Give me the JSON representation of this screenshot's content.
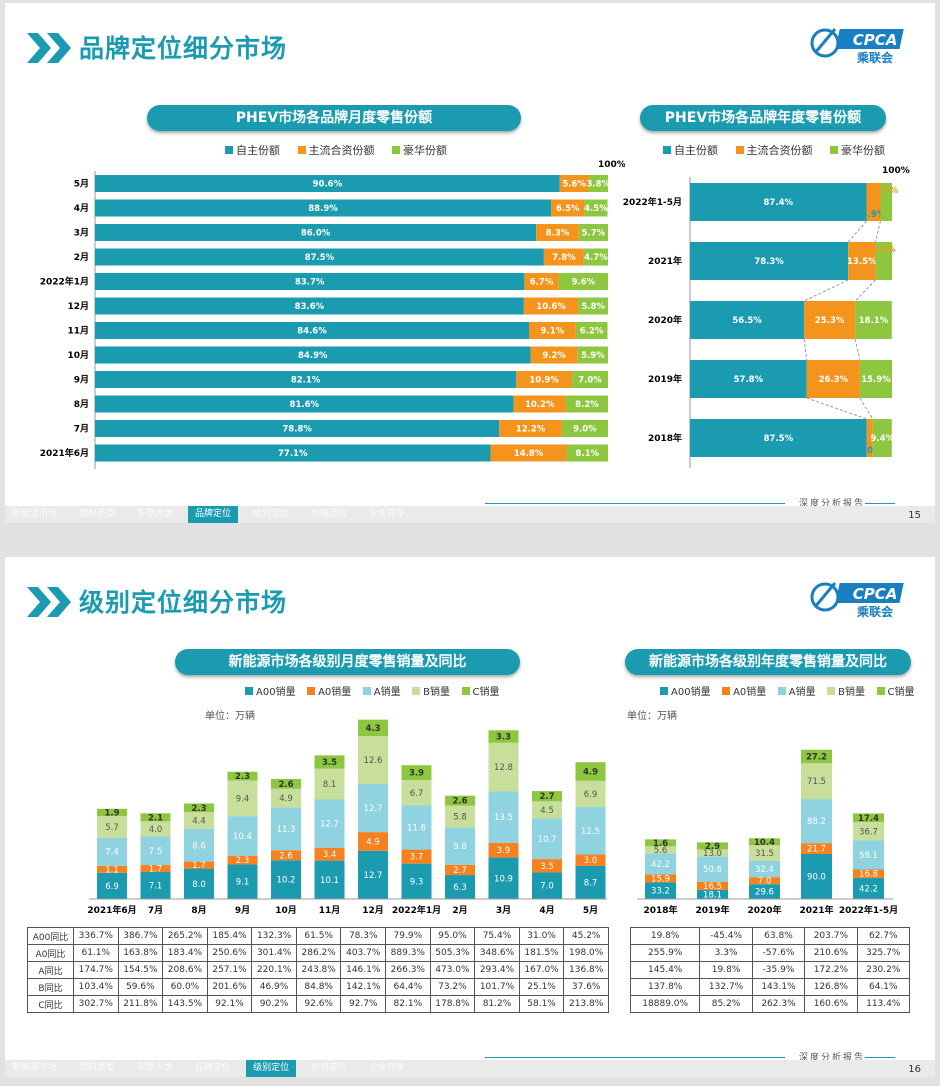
{
  "colors": {
    "teal": "#1a9bb0",
    "orange": "#f5941d",
    "green": "#8dc63f",
    "lightgreen": "#c7df9b",
    "lightblue": "#8fd3e0"
  },
  "slide1": {
    "title": "品牌定位细分市场",
    "logo_text": "CPCA",
    "logo_sub": "乘联会",
    "left_pill": "PHEV市场各品牌月度零售份额",
    "right_pill": "PHEV市场各品牌年度零售份额",
    "legend": [
      "自主份额",
      "主流合资份额",
      "豪华份额"
    ],
    "pct100": "100%",
    "page": "15",
    "deep": "深度分析报告",
    "tabs": [
      "新能源市场",
      "燃料类型",
      "车型大类",
      "品牌定位",
      "级别定位",
      "价格定位",
      "企业竞争"
    ],
    "active_tab": 3
  },
  "chart_data": [
    {
      "type": "bar",
      "orientation": "horizontal",
      "stacked": true,
      "title": "PHEV市场各品牌月度零售份额",
      "categories": [
        "5月",
        "4月",
        "3月",
        "2月",
        "2022年1月",
        "12月",
        "11月",
        "10月",
        "9月",
        "8月",
        "7月",
        "2021年6月"
      ],
      "series": [
        {
          "name": "自主份额",
          "values": [
            90.6,
            88.9,
            86.0,
            87.5,
            83.7,
            83.6,
            84.6,
            84.9,
            82.1,
            81.6,
            78.8,
            77.1
          ],
          "labels": [
            "90.6%",
            "88.9%",
            "86.0%",
            "87.5%",
            "83.7%",
            "83.6%",
            "84.6%",
            "84.9%",
            "82.1%",
            "81.6%",
            "78.8%",
            "77.1%"
          ]
        },
        {
          "name": "主流合资份额",
          "values": [
            5.6,
            6.5,
            8.3,
            7.8,
            6.7,
            10.6,
            9.1,
            9.2,
            10.9,
            10.2,
            12.2,
            14.8
          ],
          "labels": [
            "5.6%",
            "6.5%",
            "8.3%",
            "7.8%",
            "6.7%",
            "10.6%",
            "9.1%",
            "9.2%",
            "10.9%",
            "10.2%",
            "12.2%",
            "14.8%"
          ]
        },
        {
          "name": "豪华份额",
          "values": [
            3.8,
            4.5,
            5.7,
            4.7,
            9.6,
            5.8,
            6.2,
            5.9,
            7.0,
            8.2,
            9.0,
            8.1
          ],
          "labels": [
            "3.8%",
            "4.5%",
            "5.7%",
            "4.7%",
            "9.6%",
            "5.8%",
            "6.2%",
            "5.9%",
            "7.0%",
            "8.2%",
            "9.0%",
            "8.1%"
          ]
        }
      ]
    },
    {
      "type": "bar",
      "orientation": "horizontal",
      "stacked": true,
      "title": "PHEV市场各品牌年度零售份额",
      "categories": [
        "2022年1-5月",
        "2021年",
        "2020年",
        "2019年",
        "2018年"
      ],
      "series": [
        {
          "name": "自主份额",
          "values": [
            87.4,
            78.3,
            56.5,
            57.8,
            87.5
          ],
          "labels": [
            "87.4%",
            "78.3%",
            "56.5%",
            "57.8%",
            "87.5%"
          ]
        },
        {
          "name": "主流合资份额",
          "values": [
            6.9,
            13.5,
            25.3,
            26.3,
            3.0
          ],
          "labels": [
            "6.9%",
            "13.5%",
            "25.3%",
            "26.3%",
            "3.0%"
          ]
        },
        {
          "name": "豪华份额",
          "values": [
            5.7,
            8.2,
            18.1,
            15.9,
            9.4
          ],
          "labels": [
            "5.7%",
            "8.2%",
            "18.1%",
            "15.9%",
            "9.4%"
          ]
        }
      ]
    },
    {
      "type": "bar",
      "stacked": true,
      "title": "新能源市场各级别月度零售销量及同比",
      "unit": "单位：万辆",
      "categories": [
        "2021年6月",
        "7月",
        "8月",
        "9月",
        "10月",
        "11月",
        "12月",
        "2022年1月",
        "2月",
        "3月",
        "4月",
        "5月"
      ],
      "series": [
        {
          "name": "A00销量",
          "values": [
            6.9,
            7.1,
            8.0,
            9.1,
            10.2,
            10.1,
            12.7,
            9.3,
            6.3,
            10.9,
            7.0,
            8.7
          ]
        },
        {
          "name": "A0销量",
          "values": [
            1.1,
            1.7,
            1.7,
            2.3,
            2.6,
            3.4,
            4.9,
            3.7,
            2.7,
            3.9,
            3.5,
            3.0
          ]
        },
        {
          "name": "A销量",
          "values": [
            7.4,
            7.5,
            8.6,
            10.4,
            11.3,
            12.7,
            12.7,
            11.6,
            9.8,
            13.5,
            10.7,
            12.5
          ]
        },
        {
          "name": "B销量",
          "values": [
            5.7,
            4.0,
            4.4,
            9.4,
            4.9,
            8.1,
            12.6,
            6.7,
            5.8,
            12.8,
            4.5,
            6.9
          ]
        },
        {
          "name": "C销量",
          "values": [
            1.9,
            2.1,
            2.3,
            2.3,
            2.6,
            3.5,
            4.3,
            3.9,
            2.6,
            3.3,
            2.7,
            4.9
          ]
        }
      ]
    },
    {
      "type": "bar",
      "stacked": true,
      "title": "新能源市场各级别年度零售销量及同比",
      "unit": "单位：万辆",
      "categories": [
        "2018年",
        "2019年",
        "2020年",
        "2021年",
        "2022年1-5月"
      ],
      "series": [
        {
          "name": "A00销量",
          "values": [
            33.2,
            18.1,
            29.6,
            90.0,
            42.2
          ]
        },
        {
          "name": "A0销量",
          "values": [
            15.9,
            16.5,
            7.0,
            21.7,
            16.8
          ]
        },
        {
          "name": "A销量",
          "values": [
            42.2,
            50.6,
            32.4,
            88.2,
            58.1
          ]
        },
        {
          "name": "B销量",
          "values": [
            5.6,
            13.0,
            31.5,
            71.5,
            36.7
          ]
        },
        {
          "name": "C销量",
          "values": [
            1.6,
            2.9,
            10.4,
            27.2,
            17.4
          ]
        }
      ]
    }
  ],
  "slide2": {
    "title": "级别定位细分市场",
    "logo_text": "CPCA",
    "logo_sub": "乘联会",
    "left_pill": "新能源市场各级别月度零售销量及同比",
    "right_pill": "新能源市场各级别年度零售销量及同比",
    "legend": [
      "A00销量",
      "A0销量",
      "A销量",
      "B销量",
      "C销量"
    ],
    "unit": "单位：万辆",
    "page": "16",
    "deep": "深度分析报告",
    "tabs": [
      "新能源市场",
      "燃料类型",
      "车型大类",
      "品牌定位",
      "级别定位",
      "价格定位",
      "企业竞争"
    ],
    "active_tab": 4,
    "month_table": {
      "rows": [
        {
          "label": "A00同比",
          "values": [
            "336.7%",
            "386.7%",
            "265.2%",
            "185.4%",
            "132.3%",
            "61.5%",
            "78.3%",
            "79.9%",
            "95.0%",
            "75.4%",
            "31.0%",
            "45.2%"
          ]
        },
        {
          "label": "A0同比",
          "values": [
            "61.1%",
            "163.8%",
            "183.4%",
            "250.6%",
            "301.4%",
            "286.2%",
            "403.7%",
            "889.3%",
            "505.3%",
            "348.6%",
            "181.5%",
            "198.0%"
          ]
        },
        {
          "label": "A同比",
          "values": [
            "174.7%",
            "154.5%",
            "208.6%",
            "257.1%",
            "220.1%",
            "243.8%",
            "146.1%",
            "266.3%",
            "473.0%",
            "293.4%",
            "167.0%",
            "136.8%"
          ]
        },
        {
          "label": "B同比",
          "values": [
            "103.4%",
            "59.6%",
            "60.0%",
            "201.6%",
            "46.9%",
            "84.8%",
            "142.1%",
            "64.4%",
            "73.2%",
            "101.7%",
            "25.1%",
            "37.6%"
          ]
        },
        {
          "label": "C同比",
          "values": [
            "302.7%",
            "211.8%",
            "143.5%",
            "92.1%",
            "90.2%",
            "92.6%",
            "92.7%",
            "82.1%",
            "178.8%",
            "81.2%",
            "58.1%",
            "213.8%"
          ]
        }
      ]
    },
    "year_table": {
      "rows": [
        {
          "values": [
            "19.8%",
            "-45.4%",
            "63.8%",
            "203.7%",
            "62.7%"
          ]
        },
        {
          "values": [
            "255.9%",
            "3.3%",
            "-57.6%",
            "210.6%",
            "325.7%"
          ]
        },
        {
          "values": [
            "145.4%",
            "19.8%",
            "-35.9%",
            "172.2%",
            "230.2%"
          ]
        },
        {
          "values": [
            "137.8%",
            "132.7%",
            "143.1%",
            "126.8%",
            "64.1%"
          ]
        },
        {
          "values": [
            "18889.0%",
            "85.2%",
            "262.3%",
            "160.6%",
            "113.4%"
          ]
        }
      ]
    }
  }
}
